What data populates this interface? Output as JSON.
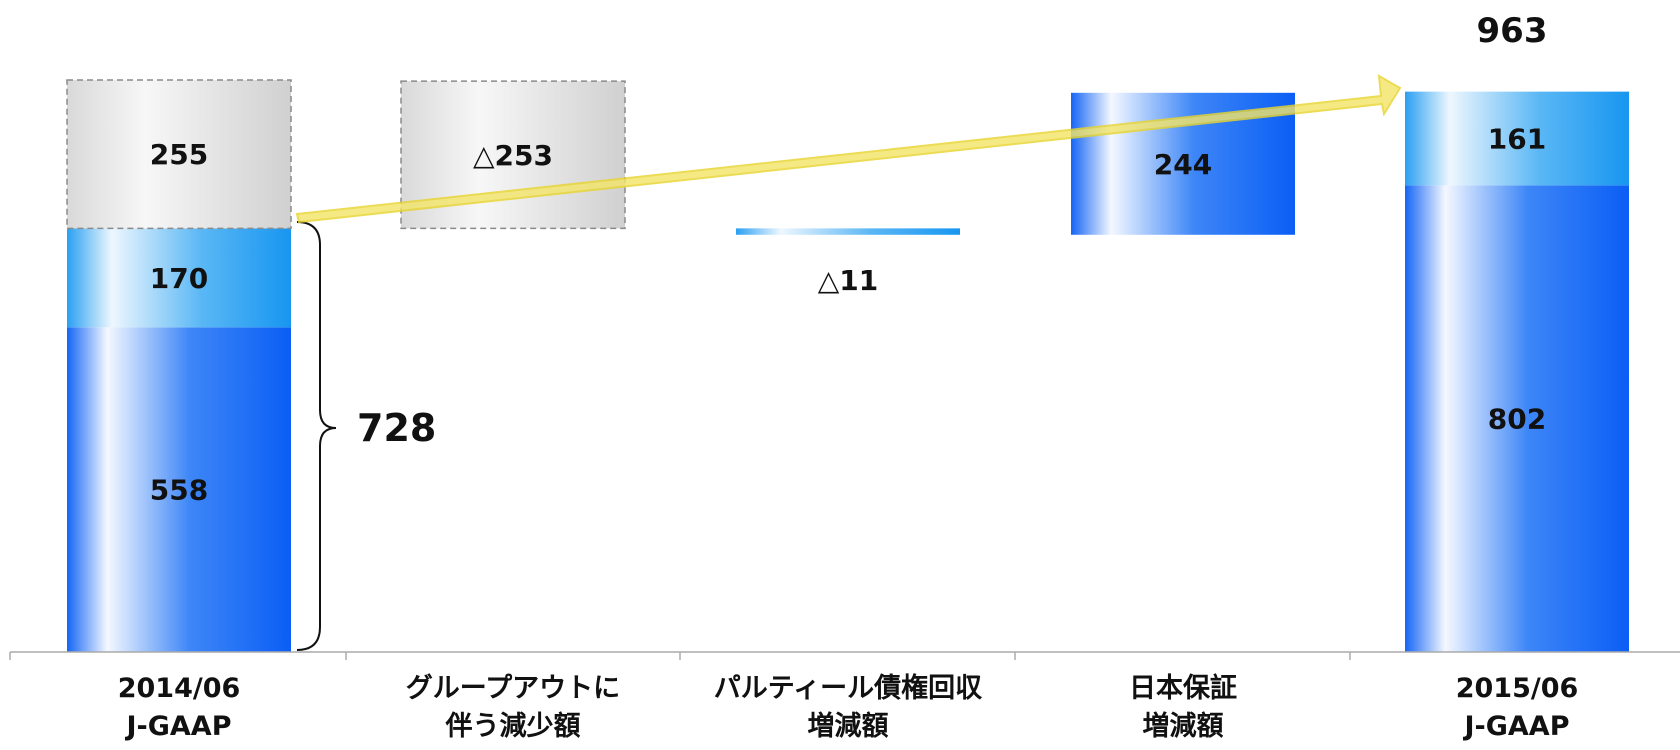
{
  "chart_data": {
    "type": "bar",
    "subtype": "waterfall",
    "categories": [
      [
        "2014/06",
        "J-GAAP"
      ],
      [
        "グループアウトに",
        "伴う減少額"
      ],
      [
        "パルティール債権回収",
        "増減額"
      ],
      [
        "日本保証",
        "増減額"
      ],
      [
        "2015/06",
        "J-GAAP"
      ]
    ],
    "segments": [
      {
        "category": 0,
        "kind": "dark",
        "start": 0,
        "end": 558,
        "label": "558"
      },
      {
        "category": 0,
        "kind": "light",
        "start": 558,
        "end": 728,
        "label": "170"
      },
      {
        "category": 0,
        "kind": "grey",
        "start": 728,
        "end": 983,
        "label": "255"
      },
      {
        "category": 1,
        "kind": "grey",
        "start": 728,
        "end": 981,
        "label": "△253"
      },
      {
        "category": 2,
        "kind": "light",
        "start": 717,
        "end": 728,
        "label": "△11"
      },
      {
        "category": 3,
        "kind": "dark",
        "start": 717,
        "end": 961,
        "label": "244"
      },
      {
        "category": 4,
        "kind": "dark",
        "start": 0,
        "end": 802,
        "label": "802"
      },
      {
        "category": 4,
        "kind": "light",
        "start": 802,
        "end": 963,
        "label": "161"
      }
    ],
    "annotations": {
      "brace_total": "728",
      "total_label": "963"
    },
    "ylim": [
      0,
      1000
    ],
    "grid": false,
    "legend": "none",
    "colors": {
      "dark": "#1a6cf5",
      "light": "#1fa0f0",
      "grey": "#d6d6d6",
      "arrow": "#f3e56a",
      "axis": "#aaaaaa"
    }
  }
}
